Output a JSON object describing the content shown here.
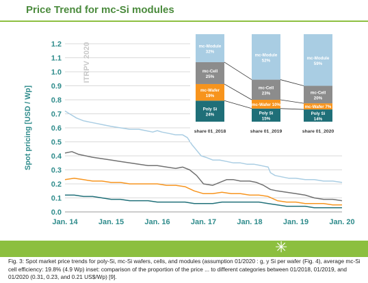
{
  "page": {
    "title": "Price Trend for mc-Si modules",
    "caption": "Fig. 3: Spot market price trends for poly-Si, mc-Si wafers, cells, and modules (assumption 01/2020 : g, y Si per wafer (Fig. 4), average mc-Si cell efficiency: 19.8% (4.9 Wp) inset: comparison of the proportion of the price ... to different categories between 01/2018, 01/2019, and 01/2020 (0.31, 0.23, and 0.21 US$/Wp) [9].",
    "footer_logo_icon": "sun-icon"
  },
  "colors": {
    "title": "#4a8a3c",
    "accent_green": "#8cbf3f",
    "axis_label": "#2e8b8b",
    "module": "#a9cde3",
    "cell": "#8c8c8c",
    "wafer": "#f7941d",
    "poly": "#1f6f78",
    "tick_label": "#2e8b8b"
  },
  "chart_data": {
    "type": "line",
    "watermark": "ITRPV 2020",
    "ylabel": "Spot pricing [USD / Wp]",
    "xlabel": "",
    "ylim": [
      0,
      1.2
    ],
    "yticks": [
      0.0,
      0.1,
      0.2,
      0.3,
      0.4,
      0.5,
      0.6,
      0.7,
      0.8,
      0.9,
      1.0,
      1.1,
      1.2
    ],
    "ytick_labels": [
      "0.0",
      "0.1",
      "0.2",
      "0.3",
      "0.4",
      "0.5",
      "0.6",
      "0.7",
      "0.8",
      "0.9",
      "1.0",
      "1.1",
      "1.2"
    ],
    "xlim": [
      2014.0,
      2020.0
    ],
    "xticks": [
      2014,
      2015,
      2016,
      2017,
      2018,
      2019,
      2020
    ],
    "xtick_labels": [
      "Jan. 14",
      "Jan. 15",
      "Jan. 16",
      "Jan. 17",
      "Jan. 18",
      "Jan. 19",
      "Jan. 20"
    ],
    "grid": true,
    "series": [
      {
        "key": "module",
        "color": "#a9cde3",
        "x": [
          2014.0,
          2014.1,
          2014.25,
          2014.4,
          2014.55,
          2014.7,
          2014.85,
          2015.0,
          2015.2,
          2015.4,
          2015.6,
          2015.75,
          2015.9,
          2016.0,
          2016.1,
          2016.25,
          2016.4,
          2016.55,
          2016.65,
          2016.75,
          2016.85,
          2016.95,
          2017.05,
          2017.2,
          2017.35,
          2017.5,
          2017.65,
          2017.8,
          2017.95,
          2018.1,
          2018.25,
          2018.4,
          2018.45,
          2018.55,
          2018.7,
          2018.85,
          2019.0,
          2019.2,
          2019.4,
          2019.6,
          2019.8,
          2020.0
        ],
        "y": [
          0.72,
          0.7,
          0.67,
          0.65,
          0.64,
          0.63,
          0.62,
          0.61,
          0.6,
          0.59,
          0.59,
          0.58,
          0.57,
          0.58,
          0.57,
          0.56,
          0.55,
          0.55,
          0.53,
          0.48,
          0.44,
          0.4,
          0.39,
          0.37,
          0.37,
          0.36,
          0.35,
          0.35,
          0.34,
          0.34,
          0.33,
          0.32,
          0.28,
          0.26,
          0.25,
          0.24,
          0.24,
          0.23,
          0.23,
          0.22,
          0.22,
          0.21
        ]
      },
      {
        "key": "cell",
        "color": "#707070",
        "x": [
          2014.0,
          2014.15,
          2014.3,
          2014.45,
          2014.6,
          2014.8,
          2015.0,
          2015.2,
          2015.4,
          2015.6,
          2015.8,
          2016.0,
          2016.2,
          2016.4,
          2016.55,
          2016.7,
          2016.85,
          2017.0,
          2017.2,
          2017.35,
          2017.5,
          2017.65,
          2017.8,
          2018.0,
          2018.15,
          2018.3,
          2018.45,
          2018.6,
          2018.8,
          2019.0,
          2019.2,
          2019.4,
          2019.6,
          2019.8,
          2020.0
        ],
        "y": [
          0.42,
          0.43,
          0.41,
          0.4,
          0.39,
          0.38,
          0.37,
          0.36,
          0.35,
          0.34,
          0.33,
          0.33,
          0.32,
          0.31,
          0.32,
          0.3,
          0.26,
          0.2,
          0.19,
          0.21,
          0.23,
          0.23,
          0.22,
          0.22,
          0.21,
          0.19,
          0.16,
          0.15,
          0.14,
          0.13,
          0.12,
          0.1,
          0.09,
          0.09,
          0.08
        ]
      },
      {
        "key": "wafer",
        "color": "#f7941d",
        "x": [
          2014.0,
          2014.2,
          2014.4,
          2014.6,
          2014.8,
          2015.0,
          2015.2,
          2015.4,
          2015.6,
          2015.8,
          2016.0,
          2016.2,
          2016.4,
          2016.6,
          2016.8,
          2017.0,
          2017.2,
          2017.4,
          2017.6,
          2017.8,
          2018.0,
          2018.2,
          2018.4,
          2018.6,
          2018.8,
          2019.0,
          2019.2,
          2019.4,
          2019.6,
          2019.8,
          2020.0
        ],
        "y": [
          0.23,
          0.24,
          0.23,
          0.22,
          0.22,
          0.21,
          0.21,
          0.2,
          0.2,
          0.2,
          0.2,
          0.19,
          0.19,
          0.18,
          0.15,
          0.13,
          0.13,
          0.14,
          0.13,
          0.13,
          0.12,
          0.12,
          0.11,
          0.08,
          0.07,
          0.07,
          0.06,
          0.06,
          0.06,
          0.05,
          0.05
        ]
      },
      {
        "key": "poly",
        "color": "#1f6f78",
        "x": [
          2014.0,
          2014.2,
          2014.4,
          2014.6,
          2014.8,
          2015.0,
          2015.2,
          2015.4,
          2015.6,
          2015.8,
          2016.0,
          2016.2,
          2016.4,
          2016.6,
          2016.8,
          2017.0,
          2017.2,
          2017.4,
          2017.6,
          2017.8,
          2018.0,
          2018.2,
          2018.4,
          2018.6,
          2018.8,
          2019.0,
          2019.2,
          2019.4,
          2019.6,
          2019.8,
          2020.0
        ],
        "y": [
          0.12,
          0.12,
          0.11,
          0.11,
          0.1,
          0.09,
          0.09,
          0.08,
          0.08,
          0.08,
          0.07,
          0.07,
          0.07,
          0.07,
          0.06,
          0.06,
          0.06,
          0.07,
          0.07,
          0.07,
          0.07,
          0.07,
          0.06,
          0.05,
          0.04,
          0.04,
          0.04,
          0.03,
          0.03,
          0.03,
          0.03
        ]
      }
    ],
    "inset": {
      "type": "stacked_bar",
      "categories": [
        "share 01_2018",
        "share 01_2019",
        "share 01_2020"
      ],
      "segments": [
        {
          "key": "poly",
          "color": "#1f6f78",
          "text_color": "#ffffff",
          "labels": [
            "Poly Si 24%",
            "Poly Si 15%",
            "Poly Si 14%"
          ],
          "values": [
            24,
            15,
            14
          ]
        },
        {
          "key": "wafer",
          "color": "#f7941d",
          "text_color": "#ffffff",
          "labels": [
            "mc-Wafer 19%",
            "mc-Wafer 10%",
            "mc-Wafer 7%"
          ],
          "values": [
            19,
            10,
            7
          ]
        },
        {
          "key": "cell",
          "color": "#8c8c8c",
          "text_color": "#ffffff",
          "labels": [
            "mc-Cell 25%",
            "mc-Cell 23%",
            "mc-Cell 20%"
          ],
          "values": [
            25,
            23,
            20
          ]
        },
        {
          "key": "module",
          "color": "#a9cde3",
          "text_color": "#ffffff",
          "labels": [
            "mc-Module 32%",
            "mc-Module 52%",
            "mc-Module 59%"
          ],
          "values": [
            32,
            52,
            59
          ]
        }
      ]
    }
  }
}
